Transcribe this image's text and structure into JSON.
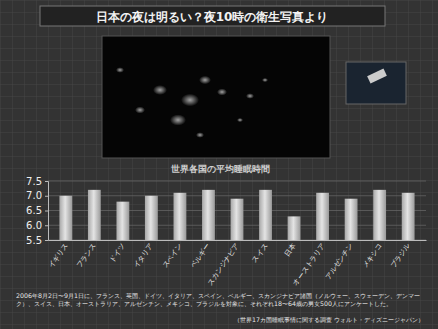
{
  "chart_data": {
    "type": "bar",
    "title": "日本の夜は明るい？夜10時の衛生写真より",
    "subtitle": "世界各国の平均睡眠時間",
    "categories": [
      "イギリス",
      "フランス",
      "ドイツ",
      "イタリア",
      "スペイン",
      "ベルギー",
      "スカンジナビア",
      "スイス",
      "日本",
      "オーストラリア",
      "アルゼンチン",
      "メキシコ",
      "ブラジル"
    ],
    "values": [
      7.0,
      7.2,
      6.8,
      7.0,
      7.1,
      7.2,
      6.9,
      7.2,
      6.3,
      7.1,
      6.9,
      7.2,
      7.1
    ],
    "color": "#e4e4e4",
    "ylim": [
      5.5,
      7.5
    ],
    "yticks": [
      5.5,
      {
        "value": 6,
        "label": "6.0"
      },
      6.5,
      {
        "value": 7,
        "label": "7.0"
      },
      7.5
    ],
    "grid": true,
    "annotations": [
      "2006年8月2日〜9月1日に、フランス、英国、ドイツ、イタリア、スペイン、ベルギー、スカンジナビア諸国（ノルウェー、スウェーデン、デンマーク）、スイス、日本、オーストラリア、アルゼンチン、メキシコ、ブラジルを対象に、それぞれ18〜64歳の男女500人にアンケートした。",
      "（世界17カ国睡眠事情に関する調査 ウォルト・ディズニージャパン）"
    ]
  }
}
